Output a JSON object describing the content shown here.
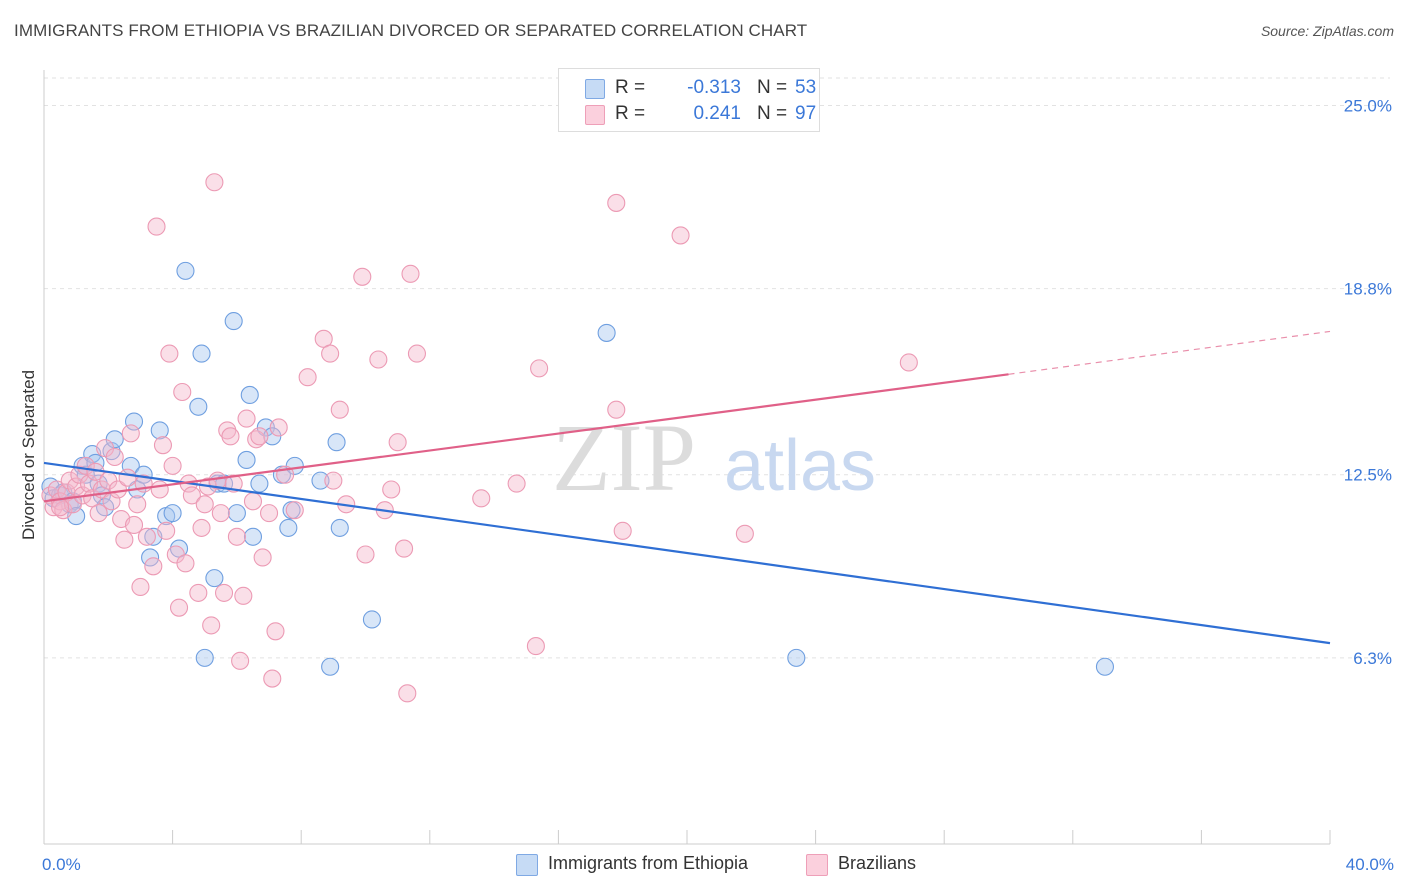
{
  "header": {
    "title": "IMMIGRANTS FROM ETHIOPIA VS BRAZILIAN DIVORCED OR SEPARATED CORRELATION CHART",
    "source": "Source: ZipAtlas.com"
  },
  "legend": {
    "rows": [
      {
        "r_label": "R =",
        "r_value": "-0.313",
        "n_label": "N =",
        "n_value": "53",
        "color": "#a8c8f0"
      },
      {
        "r_label": "R =",
        "r_value": "0.241",
        "n_label": "N =",
        "n_value": "97",
        "color": "#f5b8cc"
      }
    ]
  },
  "bottom_legend": [
    {
      "label": "Immigrants from Ethiopia",
      "color": "#a8c8f0"
    },
    {
      "label": "Brazilians",
      "color": "#f5b8cc"
    }
  ],
  "watermark": {
    "zip": "ZIP",
    "atlas": "atlas"
  },
  "chart_data": {
    "type": "scatter",
    "title": "IMMIGRANTS FROM ETHIOPIA VS BRAZILIAN DIVORCED OR SEPARATED CORRELATION CHART",
    "ylabel": "Divorced or Separated",
    "xlabel": "",
    "xlim": [
      0,
      40
    ],
    "ylim": [
      0,
      26.2
    ],
    "x_tick_labels": [
      {
        "value": 0,
        "label": "0.0%"
      },
      {
        "value": 40,
        "label": "40.0%"
      }
    ],
    "y_tick_labels": [
      {
        "value": 25.0,
        "label": "25.0%"
      },
      {
        "value": 18.8,
        "label": "18.8%"
      },
      {
        "value": 12.5,
        "label": "12.5%"
      },
      {
        "value": 6.3,
        "label": "6.3%"
      }
    ],
    "grid": "horizontal dashed",
    "series": [
      {
        "name": "Immigrants from Ethiopia",
        "color": "#6f9fe0",
        "fill": "#a8c8f0",
        "trend": {
          "x": [
            0,
            40
          ],
          "y": [
            12.9,
            6.8
          ],
          "color": "#2f6fd4"
        },
        "points": [
          [
            0.2,
            12.1
          ],
          [
            0.3,
            11.7
          ],
          [
            0.5,
            11.8
          ],
          [
            0.6,
            11.9
          ],
          [
            0.8,
            11.5
          ],
          [
            0.9,
            11.6
          ],
          [
            1.0,
            11.1
          ],
          [
            1.2,
            12.8
          ],
          [
            1.3,
            12.5
          ],
          [
            1.5,
            13.2
          ],
          [
            1.6,
            12.9
          ],
          [
            1.7,
            12.2
          ],
          [
            1.8,
            11.8
          ],
          [
            1.9,
            11.4
          ],
          [
            2.1,
            13.3
          ],
          [
            2.2,
            13.7
          ],
          [
            2.7,
            12.8
          ],
          [
            2.8,
            14.3
          ],
          [
            2.9,
            12.0
          ],
          [
            3.1,
            12.5
          ],
          [
            3.3,
            9.7
          ],
          [
            3.4,
            10.4
          ],
          [
            3.6,
            14.0
          ],
          [
            3.8,
            11.1
          ],
          [
            4.0,
            11.2
          ],
          [
            4.2,
            10.0
          ],
          [
            4.4,
            19.4
          ],
          [
            4.8,
            14.8
          ],
          [
            4.9,
            16.6
          ],
          [
            5.0,
            6.3
          ],
          [
            5.3,
            9.0
          ],
          [
            5.4,
            12.2
          ],
          [
            5.6,
            12.2
          ],
          [
            5.9,
            17.7
          ],
          [
            6.0,
            11.2
          ],
          [
            6.3,
            13.0
          ],
          [
            6.4,
            15.2
          ],
          [
            6.5,
            10.4
          ],
          [
            6.7,
            12.2
          ],
          [
            6.9,
            14.1
          ],
          [
            7.1,
            13.8
          ],
          [
            7.4,
            12.5
          ],
          [
            7.6,
            10.7
          ],
          [
            7.7,
            11.3
          ],
          [
            7.8,
            12.8
          ],
          [
            8.6,
            12.3
          ],
          [
            9.1,
            13.6
          ],
          [
            9.2,
            10.7
          ],
          [
            10.2,
            7.6
          ],
          [
            8.9,
            6.0
          ],
          [
            17.5,
            17.3
          ],
          [
            23.4,
            6.3
          ],
          [
            33.0,
            6.0
          ]
        ]
      },
      {
        "name": "Brazilians",
        "color": "#ec9ab4",
        "fill": "#f5b8cc",
        "trend": {
          "x": [
            0,
            30
          ],
          "y": [
            11.6,
            15.9
          ],
          "color": "#e06088"
        },
        "trend_dashed": {
          "x": [
            30,
            40
          ],
          "y": [
            15.9,
            17.35
          ]
        },
        "points": [
          [
            0.2,
            11.8
          ],
          [
            0.3,
            11.4
          ],
          [
            0.4,
            12.0
          ],
          [
            0.5,
            11.6
          ],
          [
            0.6,
            11.3
          ],
          [
            0.7,
            11.9
          ],
          [
            0.8,
            12.3
          ],
          [
            0.9,
            11.5
          ],
          [
            1.0,
            12.1
          ],
          [
            1.1,
            12.5
          ],
          [
            1.2,
            11.8
          ],
          [
            1.3,
            12.8
          ],
          [
            1.4,
            12.2
          ],
          [
            1.5,
            11.7
          ],
          [
            1.6,
            12.6
          ],
          [
            1.7,
            11.2
          ],
          [
            1.8,
            12.0
          ],
          [
            1.9,
            13.4
          ],
          [
            2.0,
            12.3
          ],
          [
            2.1,
            11.6
          ],
          [
            2.2,
            13.1
          ],
          [
            2.3,
            12.0
          ],
          [
            2.4,
            11.0
          ],
          [
            2.5,
            10.3
          ],
          [
            2.6,
            12.4
          ],
          [
            2.7,
            13.9
          ],
          [
            2.8,
            10.8
          ],
          [
            2.9,
            11.5
          ],
          [
            3.0,
            8.7
          ],
          [
            3.1,
            12.2
          ],
          [
            3.2,
            10.4
          ],
          [
            3.4,
            9.4
          ],
          [
            3.5,
            20.9
          ],
          [
            3.6,
            12.0
          ],
          [
            3.7,
            13.5
          ],
          [
            3.8,
            10.6
          ],
          [
            3.9,
            16.6
          ],
          [
            4.0,
            12.8
          ],
          [
            4.1,
            9.8
          ],
          [
            4.2,
            8.0
          ],
          [
            4.3,
            15.3
          ],
          [
            4.4,
            9.5
          ],
          [
            4.5,
            12.2
          ],
          [
            4.6,
            11.8
          ],
          [
            4.8,
            8.5
          ],
          [
            4.9,
            10.7
          ],
          [
            5.0,
            11.5
          ],
          [
            5.1,
            12.1
          ],
          [
            5.2,
            7.4
          ],
          [
            5.3,
            22.4
          ],
          [
            5.4,
            12.3
          ],
          [
            5.5,
            11.2
          ],
          [
            5.6,
            8.5
          ],
          [
            5.7,
            14.0
          ],
          [
            5.8,
            13.8
          ],
          [
            5.9,
            12.2
          ],
          [
            6.0,
            10.4
          ],
          [
            6.1,
            6.2
          ],
          [
            6.2,
            8.4
          ],
          [
            6.3,
            14.4
          ],
          [
            6.5,
            11.6
          ],
          [
            6.6,
            13.7
          ],
          [
            6.7,
            13.8
          ],
          [
            6.8,
            9.7
          ],
          [
            7.0,
            11.2
          ],
          [
            7.1,
            5.6
          ],
          [
            7.2,
            7.2
          ],
          [
            7.3,
            14.1
          ],
          [
            7.5,
            12.5
          ],
          [
            7.8,
            11.3
          ],
          [
            8.2,
            15.8
          ],
          [
            8.7,
            17.1
          ],
          [
            8.9,
            16.6
          ],
          [
            9.0,
            12.3
          ],
          [
            9.2,
            14.7
          ],
          [
            9.4,
            11.5
          ],
          [
            9.9,
            19.2
          ],
          [
            10.0,
            9.8
          ],
          [
            10.4,
            16.4
          ],
          [
            10.6,
            11.3
          ],
          [
            10.8,
            12.0
          ],
          [
            11.0,
            13.6
          ],
          [
            11.2,
            10.0
          ],
          [
            11.3,
            5.1
          ],
          [
            11.4,
            19.3
          ],
          [
            11.6,
            16.6
          ],
          [
            13.6,
            11.7
          ],
          [
            14.7,
            12.2
          ],
          [
            15.3,
            6.7
          ],
          [
            15.4,
            16.1
          ],
          [
            17.8,
            21.7
          ],
          [
            17.8,
            14.7
          ],
          [
            18.0,
            10.6
          ],
          [
            19.8,
            20.6
          ],
          [
            21.8,
            10.5
          ],
          [
            26.9,
            16.3
          ],
          [
            0.5,
            11.4
          ]
        ]
      }
    ]
  }
}
